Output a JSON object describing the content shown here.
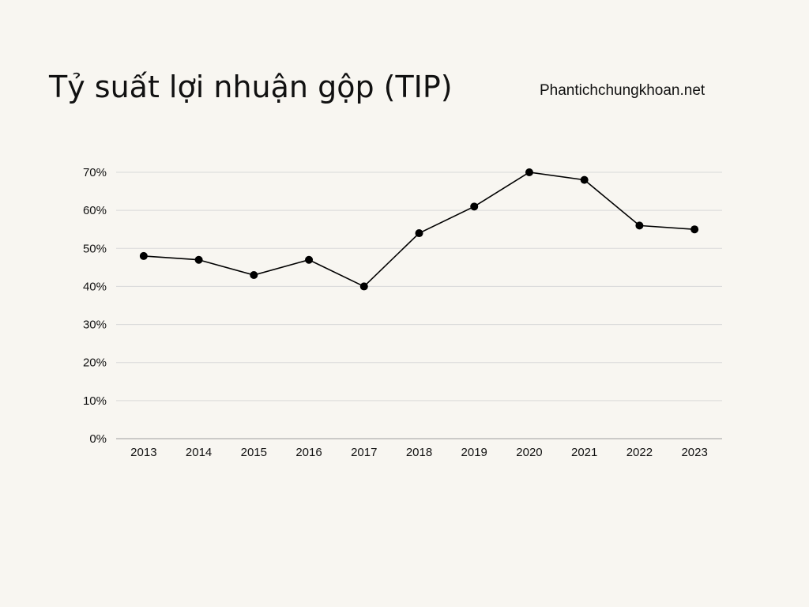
{
  "title": "Tỷ suất lợi nhuận gộp (TIP)",
  "source": "Phantichchungkhoan.net",
  "colors": {
    "background": "#f8f6f1",
    "line": "#000000",
    "grid": "#d9d9d9",
    "axis": "#9e9e9e"
  },
  "chart_data": {
    "type": "line",
    "title": "Tỷ suất lợi nhuận gộp (TIP)",
    "xlabel": "",
    "ylabel": "",
    "categories": [
      "2013",
      "2014",
      "2015",
      "2016",
      "2017",
      "2018",
      "2019",
      "2020",
      "2021",
      "2022",
      "2023"
    ],
    "series": [
      {
        "values": [
          48,
          47,
          43,
          47,
          40,
          54,
          61,
          70,
          68,
          56,
          55
        ]
      }
    ],
    "ylim": [
      0,
      70
    ],
    "yticks": [
      0,
      10,
      20,
      30,
      40,
      50,
      60,
      70
    ],
    "ytick_labels": [
      "0%",
      "10%",
      "20%",
      "30%",
      "40%",
      "50%",
      "60%",
      "70%"
    ],
    "grid": true,
    "legend": "none",
    "markers": true
  }
}
